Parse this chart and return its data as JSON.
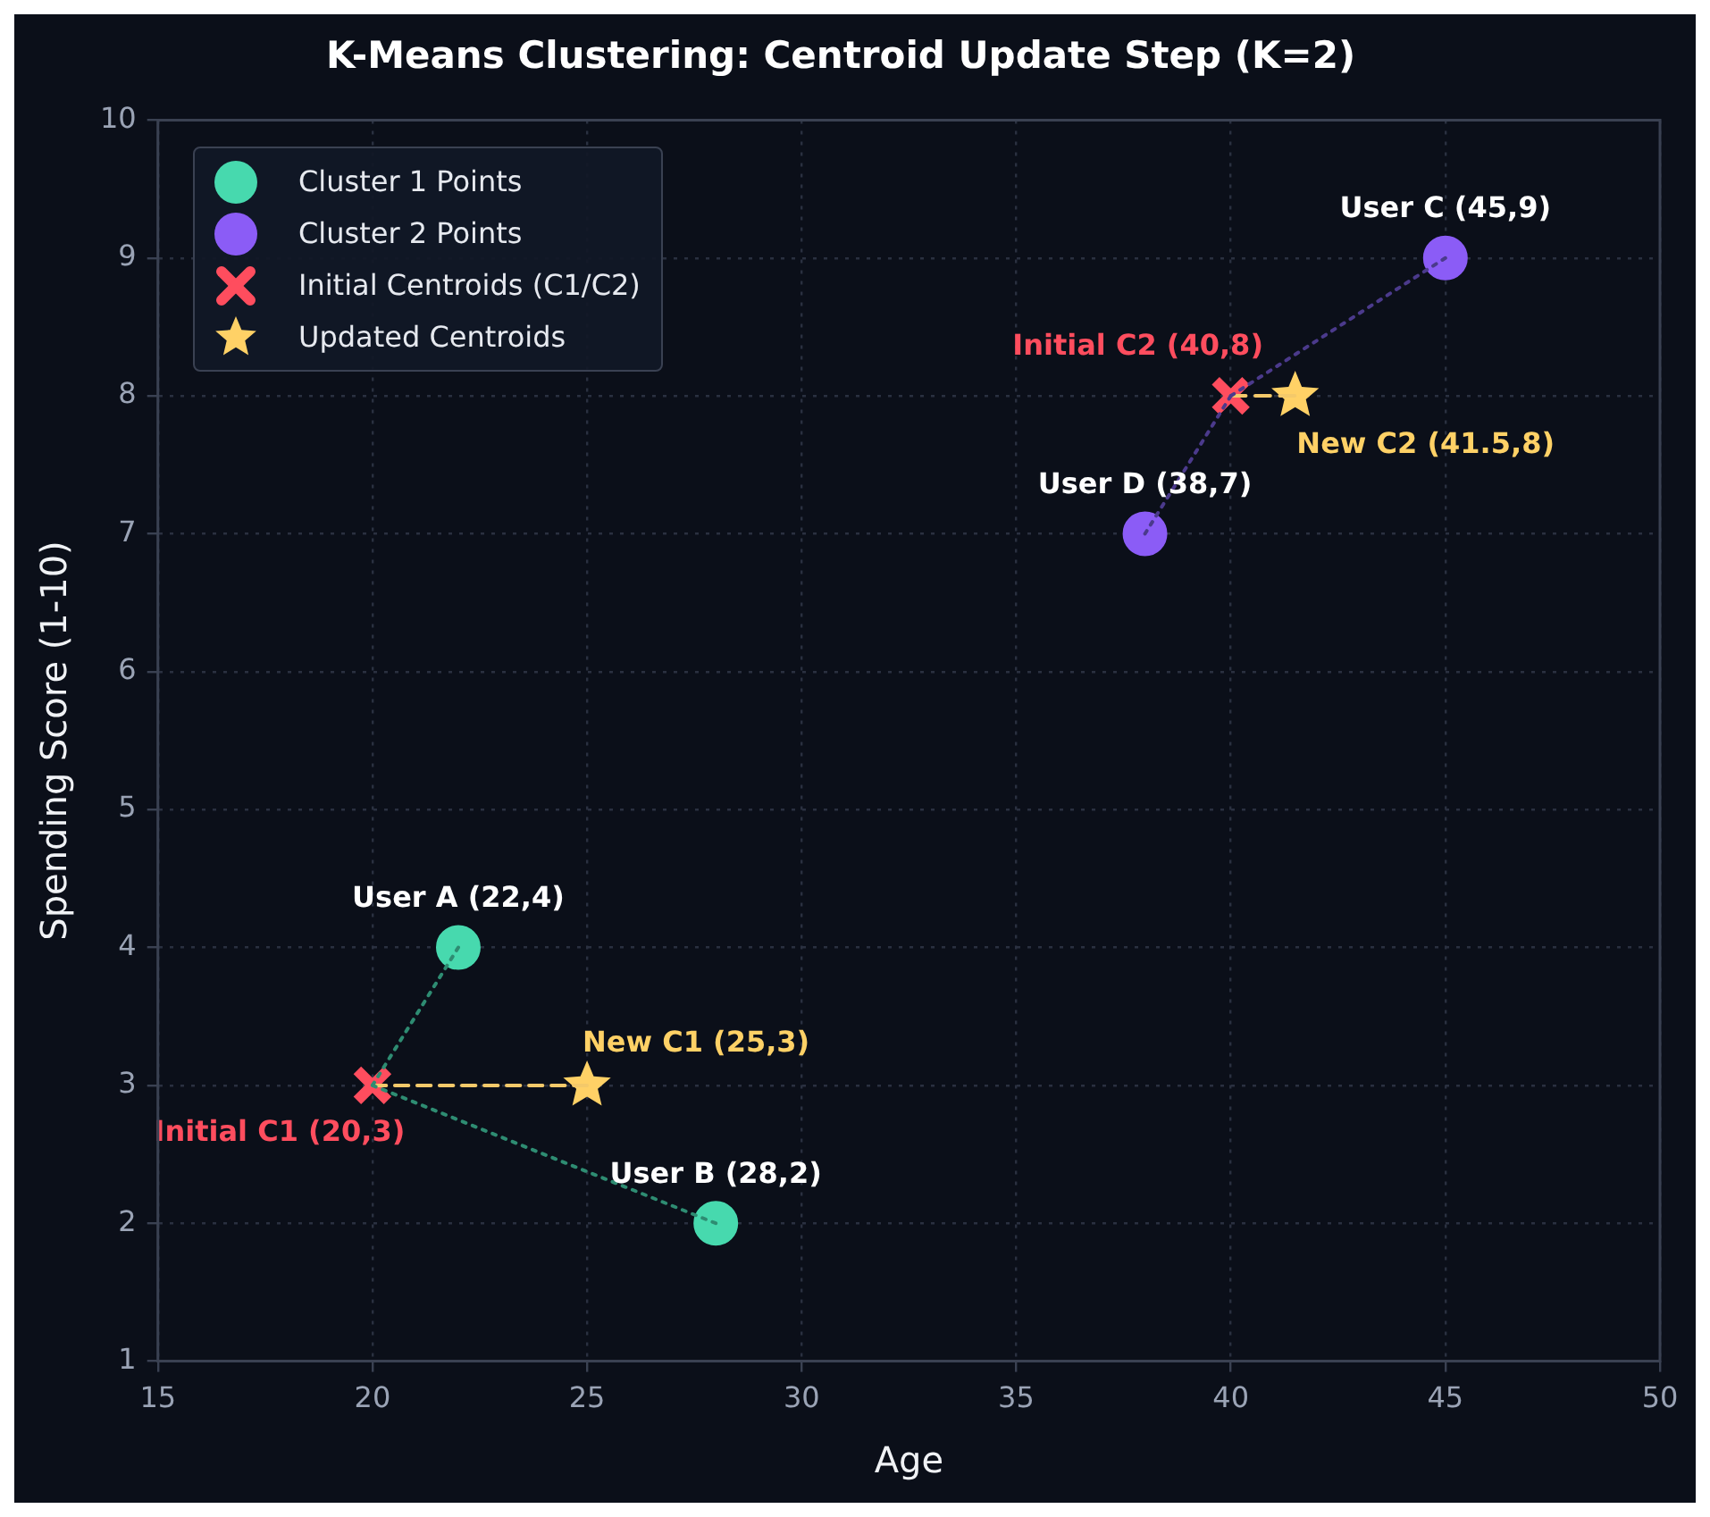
{
  "chart_data": {
    "type": "scatter",
    "title": "K-Means Clustering: Centroid Update Step (K=2)",
    "xlabel": "Age",
    "ylabel": "Spending Score (1-10)",
    "xlim": [
      15,
      50
    ],
    "xticks": [
      15,
      20,
      25,
      30,
      35,
      40,
      45,
      50
    ],
    "ylim": [
      1,
      10
    ],
    "yticks": [
      1,
      2,
      3,
      4,
      5,
      6,
      7,
      8,
      9,
      10
    ],
    "grid": true,
    "legend": "top left",
    "series": [
      {
        "type": "line",
        "color": "#2e8c72",
        "line_style": "dotted",
        "marker": "none",
        "x": [
          22,
          20,
          28
        ],
        "values": [
          4,
          3,
          2
        ]
      },
      {
        "type": "line",
        "color": "#4b3a8c",
        "line_style": "dotted",
        "marker": "none",
        "x": [
          45,
          40,
          38
        ],
        "values": [
          9,
          8,
          7
        ]
      },
      {
        "type": "line",
        "color": "#f4c96a",
        "line_style": "dashed",
        "marker": "none",
        "x": [
          20,
          25
        ],
        "values": [
          3,
          3
        ]
      },
      {
        "type": "line",
        "color": "#f4c96a",
        "line_style": "dashed",
        "marker": "none",
        "x": [
          40,
          41.5
        ],
        "values": [
          8,
          8
        ]
      },
      {
        "name": "Cluster 1 Points",
        "color": "#47d9ae",
        "marker": "circle",
        "x": [
          22,
          28
        ],
        "values": [
          4,
          2
        ]
      },
      {
        "name": "Cluster 2 Points",
        "color": "#8b5cf6",
        "marker": "circle",
        "x": [
          45,
          38
        ],
        "values": [
          9,
          7
        ]
      },
      {
        "name": "Initial Centroids (C1/C2)",
        "color": "#ff4d5e",
        "marker": "cross",
        "x": [
          20,
          40
        ],
        "values": [
          3,
          8
        ]
      },
      {
        "name": "Updated Centroids",
        "color": "#ffd166",
        "marker": "star",
        "x": [
          25,
          41.5
        ],
        "values": [
          3,
          8
        ]
      }
    ],
    "annotations": [
      {
        "text": "User A (22,4)",
        "x": 22,
        "y": 4
      },
      {
        "text": "User B (28,2)",
        "x": 28,
        "y": 2
      },
      {
        "text": "User C (45,9)",
        "x": 45,
        "y": 9
      },
      {
        "text": "User D (38,7)",
        "x": 38,
        "y": 7
      },
      {
        "text": "Initial C1 (20,3)",
        "x": 20,
        "y": 3
      },
      {
        "text": "Initial C2 (40,8)",
        "x": 40,
        "y": 8
      },
      {
        "text": "New C1 (25,3)",
        "x": 25,
        "y": 3
      },
      {
        "text": "New C2 (41.5,8)",
        "x": 41.5,
        "y": 8
      }
    ]
  }
}
